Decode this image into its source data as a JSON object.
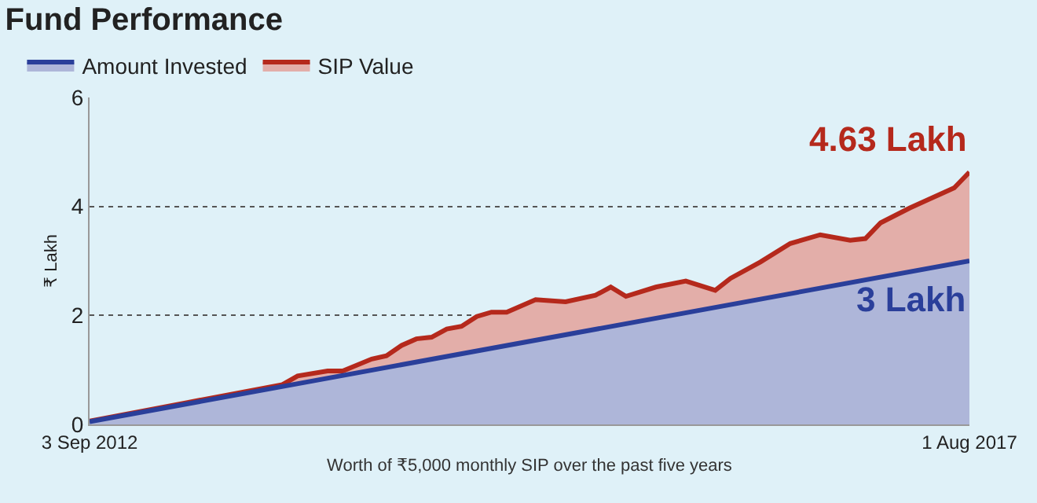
{
  "chart_data": {
    "type": "area",
    "title": "Fund Performance",
    "xlabel": "Worth of ₹5,000 monthly SIP over the past five years",
    "ylabel": "₹ Lakh",
    "series": [
      {
        "name": "SIP Value",
        "color": "#b5291c",
        "x": [
          "2012-09-03",
          "2013-05-01",
          "2013-10-01",
          "2013-11-01",
          "2014-01-01",
          "2014-02-01",
          "2014-04-01",
          "2014-05-01",
          "2014-06-01",
          "2014-07-01",
          "2014-08-01",
          "2014-09-01",
          "2014-10-01",
          "2014-11-01",
          "2014-12-01",
          "2015-01-01",
          "2015-03-01",
          "2015-05-01",
          "2015-07-01",
          "2015-08-01",
          "2015-09-01",
          "2015-11-01",
          "2016-01-01",
          "2016-03-01",
          "2016-04-01",
          "2016-06-01",
          "2016-08-01",
          "2016-10-01",
          "2016-12-01",
          "2017-01-01",
          "2017-02-01",
          "2017-04-01",
          "2017-06-01",
          "2017-07-01",
          "2017-08-01"
        ],
        "values": [
          0.06,
          0.47,
          0.73,
          0.89,
          0.98,
          0.98,
          1.2,
          1.26,
          1.45,
          1.57,
          1.6,
          1.75,
          1.8,
          1.98,
          2.06,
          2.06,
          2.29,
          2.25,
          2.37,
          2.52,
          2.35,
          2.52,
          2.63,
          2.46,
          2.68,
          2.98,
          3.32,
          3.48,
          3.38,
          3.41,
          3.7,
          3.97,
          4.22,
          4.34,
          4.63
        ]
      },
      {
        "name": "Amount Invested",
        "color": "#2a3f9a",
        "x": [
          "2012-09-03",
          "2017-08-01"
        ],
        "values": [
          0.05,
          3.0
        ]
      }
    ],
    "annotations": [
      {
        "text": "4.63 Lakh",
        "x": "2017-08-01",
        "y": 4.63
      },
      {
        "text": "3 Lakh",
        "x": "2017-08-01",
        "y": 3.0
      }
    ],
    "xlim": [
      "2012-09-03",
      "2017-08-01"
    ],
    "xticks": [
      {
        "value": "2012-09-03",
        "label": "3 Sep 2012"
      },
      {
        "value": "2017-08-01",
        "label": "1 Aug 2017"
      }
    ],
    "ylim": [
      0,
      6
    ],
    "yticks": [
      0,
      2,
      4,
      6
    ],
    "grid": "y",
    "legend": "top left"
  }
}
